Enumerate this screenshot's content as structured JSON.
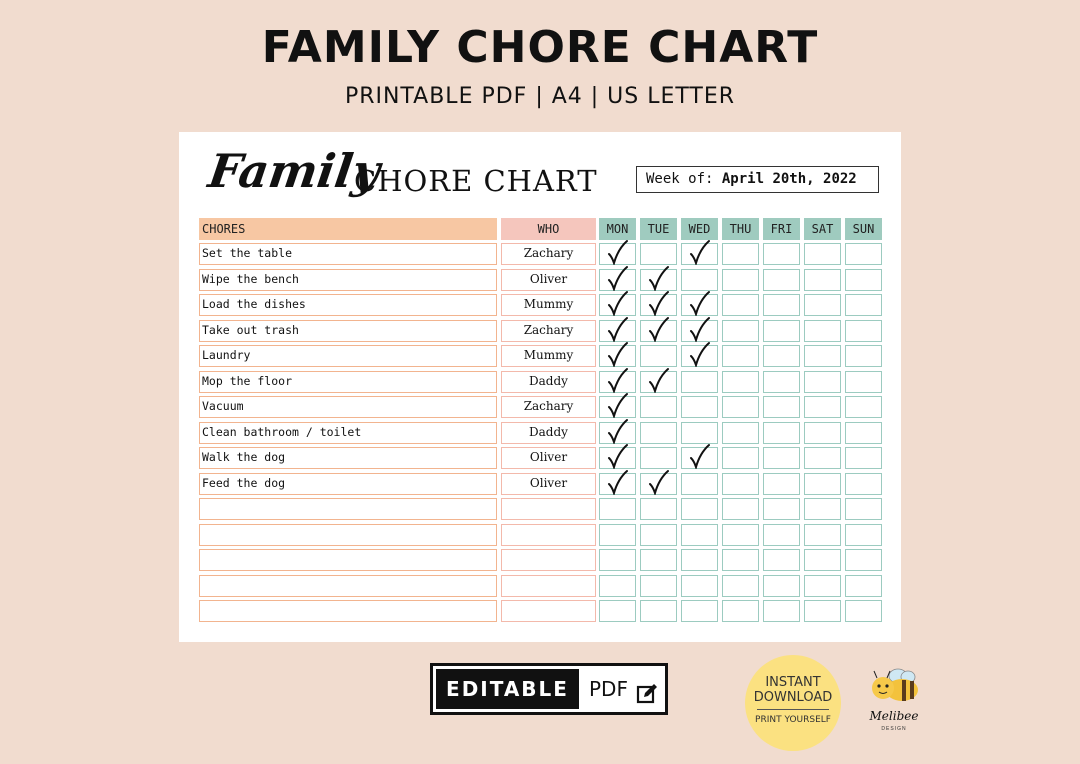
{
  "header": {
    "title": "FAMILY CHORE CHART",
    "subtitle": "PRINTABLE PDF | A4 | US LETTER"
  },
  "sheet": {
    "script_title": "Family",
    "caps_title": "CHORE CHART",
    "week_label": "Week of:",
    "week_value": "April 20th, 2022",
    "columns": {
      "chores": "CHORES",
      "who": "WHO",
      "days": [
        "MON",
        "TUE",
        "WED",
        "THU",
        "FRI",
        "SAT",
        "SUN"
      ]
    },
    "rows": [
      {
        "chore": "Set the table",
        "who": "Zachary",
        "checks": [
          1,
          0,
          1,
          0,
          0,
          0,
          0
        ]
      },
      {
        "chore": "Wipe the bench",
        "who": "Oliver",
        "checks": [
          1,
          1,
          0,
          0,
          0,
          0,
          0
        ]
      },
      {
        "chore": "Load the dishes",
        "who": "Mummy",
        "checks": [
          1,
          1,
          1,
          0,
          0,
          0,
          0
        ]
      },
      {
        "chore": "Take out trash",
        "who": "Zachary",
        "checks": [
          1,
          1,
          1,
          0,
          0,
          0,
          0
        ]
      },
      {
        "chore": "Laundry",
        "who": "Mummy",
        "checks": [
          1,
          0,
          1,
          0,
          0,
          0,
          0
        ]
      },
      {
        "chore": "Mop the floor",
        "who": "Daddy",
        "checks": [
          1,
          1,
          0,
          0,
          0,
          0,
          0
        ]
      },
      {
        "chore": "Vacuum",
        "who": "Zachary",
        "checks": [
          1,
          0,
          0,
          0,
          0,
          0,
          0
        ]
      },
      {
        "chore": "Clean bathroom / toilet",
        "who": "Daddy",
        "checks": [
          1,
          0,
          0,
          0,
          0,
          0,
          0
        ]
      },
      {
        "chore": "Walk the dog",
        "who": "Oliver",
        "checks": [
          1,
          0,
          1,
          0,
          0,
          0,
          0
        ]
      },
      {
        "chore": "Feed the dog",
        "who": "Oliver",
        "checks": [
          1,
          1,
          0,
          0,
          0,
          0,
          0
        ]
      },
      {
        "chore": "",
        "who": "",
        "checks": [
          0,
          0,
          0,
          0,
          0,
          0,
          0
        ]
      },
      {
        "chore": "",
        "who": "",
        "checks": [
          0,
          0,
          0,
          0,
          0,
          0,
          0
        ]
      },
      {
        "chore": "",
        "who": "",
        "checks": [
          0,
          0,
          0,
          0,
          0,
          0,
          0
        ]
      },
      {
        "chore": "",
        "who": "",
        "checks": [
          0,
          0,
          0,
          0,
          0,
          0,
          0
        ]
      },
      {
        "chore": "",
        "who": "",
        "checks": [
          0,
          0,
          0,
          0,
          0,
          0,
          0
        ]
      }
    ]
  },
  "footer": {
    "editable_label": "EDITABLE",
    "pdf_label": "PDF",
    "edit_icon": "edit-icon",
    "badge_line1": "INSTANT",
    "badge_line2": "DOWNLOAD",
    "badge_line3": "PRINT YOURSELF",
    "logo_name": "Melibee",
    "logo_sub": "DESIGN",
    "logo_icon": "bee-icon"
  },
  "colors": {
    "background": "#f1dccf",
    "chores_header": "#f7c7a3",
    "who_header": "#f5c6bd",
    "day_header": "#9fcbbf",
    "chore_border": "#f2b48f",
    "day_border": "#9ccbc0",
    "badge": "#fbe181"
  }
}
